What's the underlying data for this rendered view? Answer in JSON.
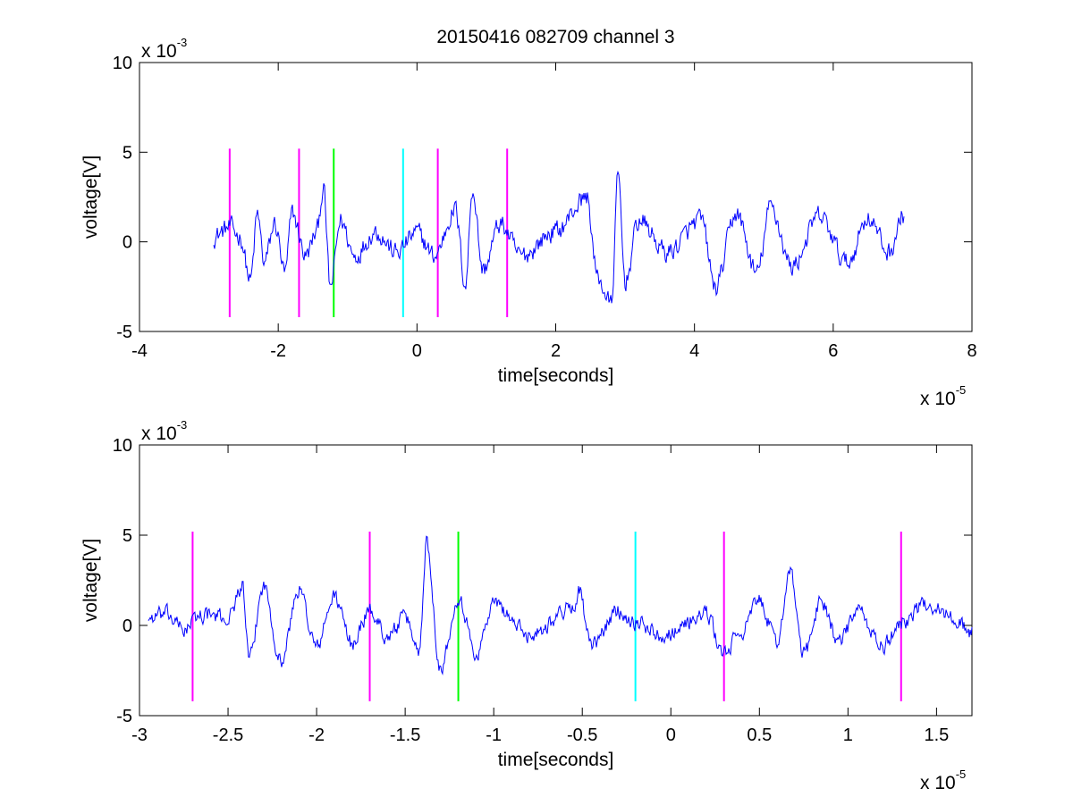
{
  "chart_data": [
    {
      "type": "line",
      "title": "20150416 082709 channel 3",
      "xlabel": "time[seconds]",
      "ylabel": "voltage[V]",
      "xlim": [
        -4e-05,
        8e-05
      ],
      "ylim": [
        -0.005,
        0.01
      ],
      "x_ticks": [
        -4,
        -2,
        0,
        2,
        4,
        6,
        8
      ],
      "x_tick_labels": [
        "-4",
        "-2",
        "0",
        "2",
        "4",
        "6",
        "8"
      ],
      "y_ticks": [
        -5,
        0,
        5,
        10
      ],
      "y_tick_labels": [
        "-5",
        "0",
        "5",
        "10"
      ],
      "x_multiplier": {
        "base": "x 10",
        "exponent": "-5"
      },
      "y_multiplier": {
        "base": "x 10",
        "exponent": "-3"
      },
      "grid": false,
      "series": [
        {
          "color": "#0000ff",
          "x_range": [
            -2.93e-05,
            7.02e-05
          ],
          "anchors": [
            [
              -2.93,
              0.3
            ],
            [
              -2.7,
              0.8
            ],
            [
              -2.55,
              0.3
            ],
            [
              -2.4,
              -2.2
            ],
            [
              -2.3,
              1.5
            ],
            [
              -2.2,
              -1.2
            ],
            [
              -2.05,
              1.0
            ],
            [
              -1.9,
              -1.8
            ],
            [
              -1.8,
              1.6
            ],
            [
              -1.6,
              -0.8
            ],
            [
              -1.45,
              0.5
            ],
            [
              -1.35,
              3.0
            ],
            [
              -1.25,
              -2.6
            ],
            [
              -1.1,
              1.2
            ],
            [
              -0.9,
              -0.8
            ],
            [
              -0.6,
              0.6
            ],
            [
              -0.3,
              -0.6
            ],
            [
              0.0,
              0.5
            ],
            [
              0.25,
              -0.8
            ],
            [
              0.55,
              1.8
            ],
            [
              0.7,
              -2.4
            ],
            [
              0.8,
              3.0
            ],
            [
              0.95,
              -1.6
            ],
            [
              1.2,
              1.0
            ],
            [
              1.5,
              -0.8
            ],
            [
              2.0,
              0.6
            ],
            [
              2.45,
              2.5
            ],
            [
              2.6,
              -2.0
            ],
            [
              2.8,
              -3.5
            ],
            [
              2.9,
              3.6
            ],
            [
              3.0,
              -2.2
            ],
            [
              3.2,
              1.2
            ],
            [
              3.6,
              -0.6
            ],
            [
              4.1,
              1.2
            ],
            [
              4.3,
              -2.6
            ],
            [
              4.6,
              1.6
            ],
            [
              4.9,
              -1.8
            ],
            [
              5.1,
              2.0
            ],
            [
              5.4,
              -1.4
            ],
            [
              5.8,
              1.4
            ],
            [
              6.2,
              -1.2
            ],
            [
              6.5,
              1.4
            ],
            [
              6.8,
              -0.6
            ],
            [
              7.02,
              1.5
            ]
          ],
          "jitter": 0.9
        }
      ],
      "markers": [
        {
          "x": -2.7e-05,
          "color": "#ff00ff"
        },
        {
          "x": -1.7e-05,
          "color": "#ff00ff"
        },
        {
          "x": -1.2e-05,
          "color": "#00ff00"
        },
        {
          "x": -2e-06,
          "color": "#00ffff"
        },
        {
          "x": 3e-06,
          "color": "#ff00ff"
        },
        {
          "x": 1.3e-05,
          "color": "#ff00ff"
        }
      ],
      "marker_ylim": [
        -0.0042,
        0.0052
      ]
    },
    {
      "type": "line",
      "title": "",
      "xlabel": "time[seconds]",
      "ylabel": "voltage[V]",
      "xlim": [
        -3e-05,
        1.7e-05
      ],
      "ylim": [
        -0.005,
        0.01
      ],
      "x_ticks": [
        -3,
        -2.5,
        -2,
        -1.5,
        -1,
        -0.5,
        0,
        0.5,
        1,
        1.5
      ],
      "x_tick_labels": [
        "-3",
        "-2.5",
        "-2",
        "-1.5",
        "-1",
        "-0.5",
        "0",
        "0.5",
        "1",
        "1.5"
      ],
      "y_ticks": [
        -5,
        0,
        5,
        10
      ],
      "y_tick_labels": [
        "-5",
        "0",
        "5",
        "10"
      ],
      "x_multiplier": {
        "base": "x 10",
        "exponent": "-5"
      },
      "y_multiplier": {
        "base": "x 10",
        "exponent": "-3"
      },
      "grid": false,
      "series": [
        {
          "color": "#0000ff",
          "x_range": [
            -2.95e-05,
            1.7e-05
          ],
          "anchors": [
            [
              -2.95,
              0.4
            ],
            [
              -2.85,
              0.6
            ],
            [
              -2.75,
              -0.2
            ],
            [
              -2.65,
              0.6
            ],
            [
              -2.5,
              0.4
            ],
            [
              -2.42,
              2.2
            ],
            [
              -2.38,
              -2.0
            ],
            [
              -2.3,
              2.2
            ],
            [
              -2.2,
              -2.0
            ],
            [
              -2.1,
              2.0
            ],
            [
              -2.0,
              -1.2
            ],
            [
              -1.9,
              1.6
            ],
            [
              -1.8,
              -1.0
            ],
            [
              -1.7,
              0.8
            ],
            [
              -1.6,
              -0.6
            ],
            [
              -1.5,
              0.4
            ],
            [
              -1.42,
              -1.4
            ],
            [
              -1.38,
              4.6
            ],
            [
              -1.3,
              -2.4
            ],
            [
              -1.2,
              1.6
            ],
            [
              -1.1,
              -1.6
            ],
            [
              -1.0,
              1.2
            ],
            [
              -0.8,
              -0.5
            ],
            [
              -0.55,
              1.0
            ],
            [
              -0.52,
              2.0
            ],
            [
              -0.45,
              -1.2
            ],
            [
              -0.3,
              0.8
            ],
            [
              -0.2,
              0.2
            ],
            [
              -0.05,
              -0.5
            ],
            [
              0.2,
              0.6
            ],
            [
              0.3,
              -1.6
            ],
            [
              0.4,
              -0.3
            ],
            [
              0.5,
              1.4
            ],
            [
              0.6,
              -1.0
            ],
            [
              0.67,
              3.0
            ],
            [
              0.75,
              -1.6
            ],
            [
              0.85,
              1.4
            ],
            [
              0.95,
              -1.0
            ],
            [
              1.05,
              0.8
            ],
            [
              1.2,
              -1.2
            ],
            [
              1.3,
              0.2
            ],
            [
              1.45,
              1.2
            ],
            [
              1.6,
              0.4
            ],
            [
              1.7,
              -0.4
            ]
          ],
          "jitter": 0.7
        }
      ],
      "markers": [
        {
          "x": -2.7e-05,
          "color": "#ff00ff"
        },
        {
          "x": -1.7e-05,
          "color": "#ff00ff"
        },
        {
          "x": -1.2e-05,
          "color": "#00ff00"
        },
        {
          "x": -2e-06,
          "color": "#00ffff"
        },
        {
          "x": 3e-06,
          "color": "#ff00ff"
        },
        {
          "x": 1.3e-05,
          "color": "#ff00ff"
        }
      ],
      "marker_ylim": [
        -0.0042,
        0.0052
      ]
    }
  ]
}
